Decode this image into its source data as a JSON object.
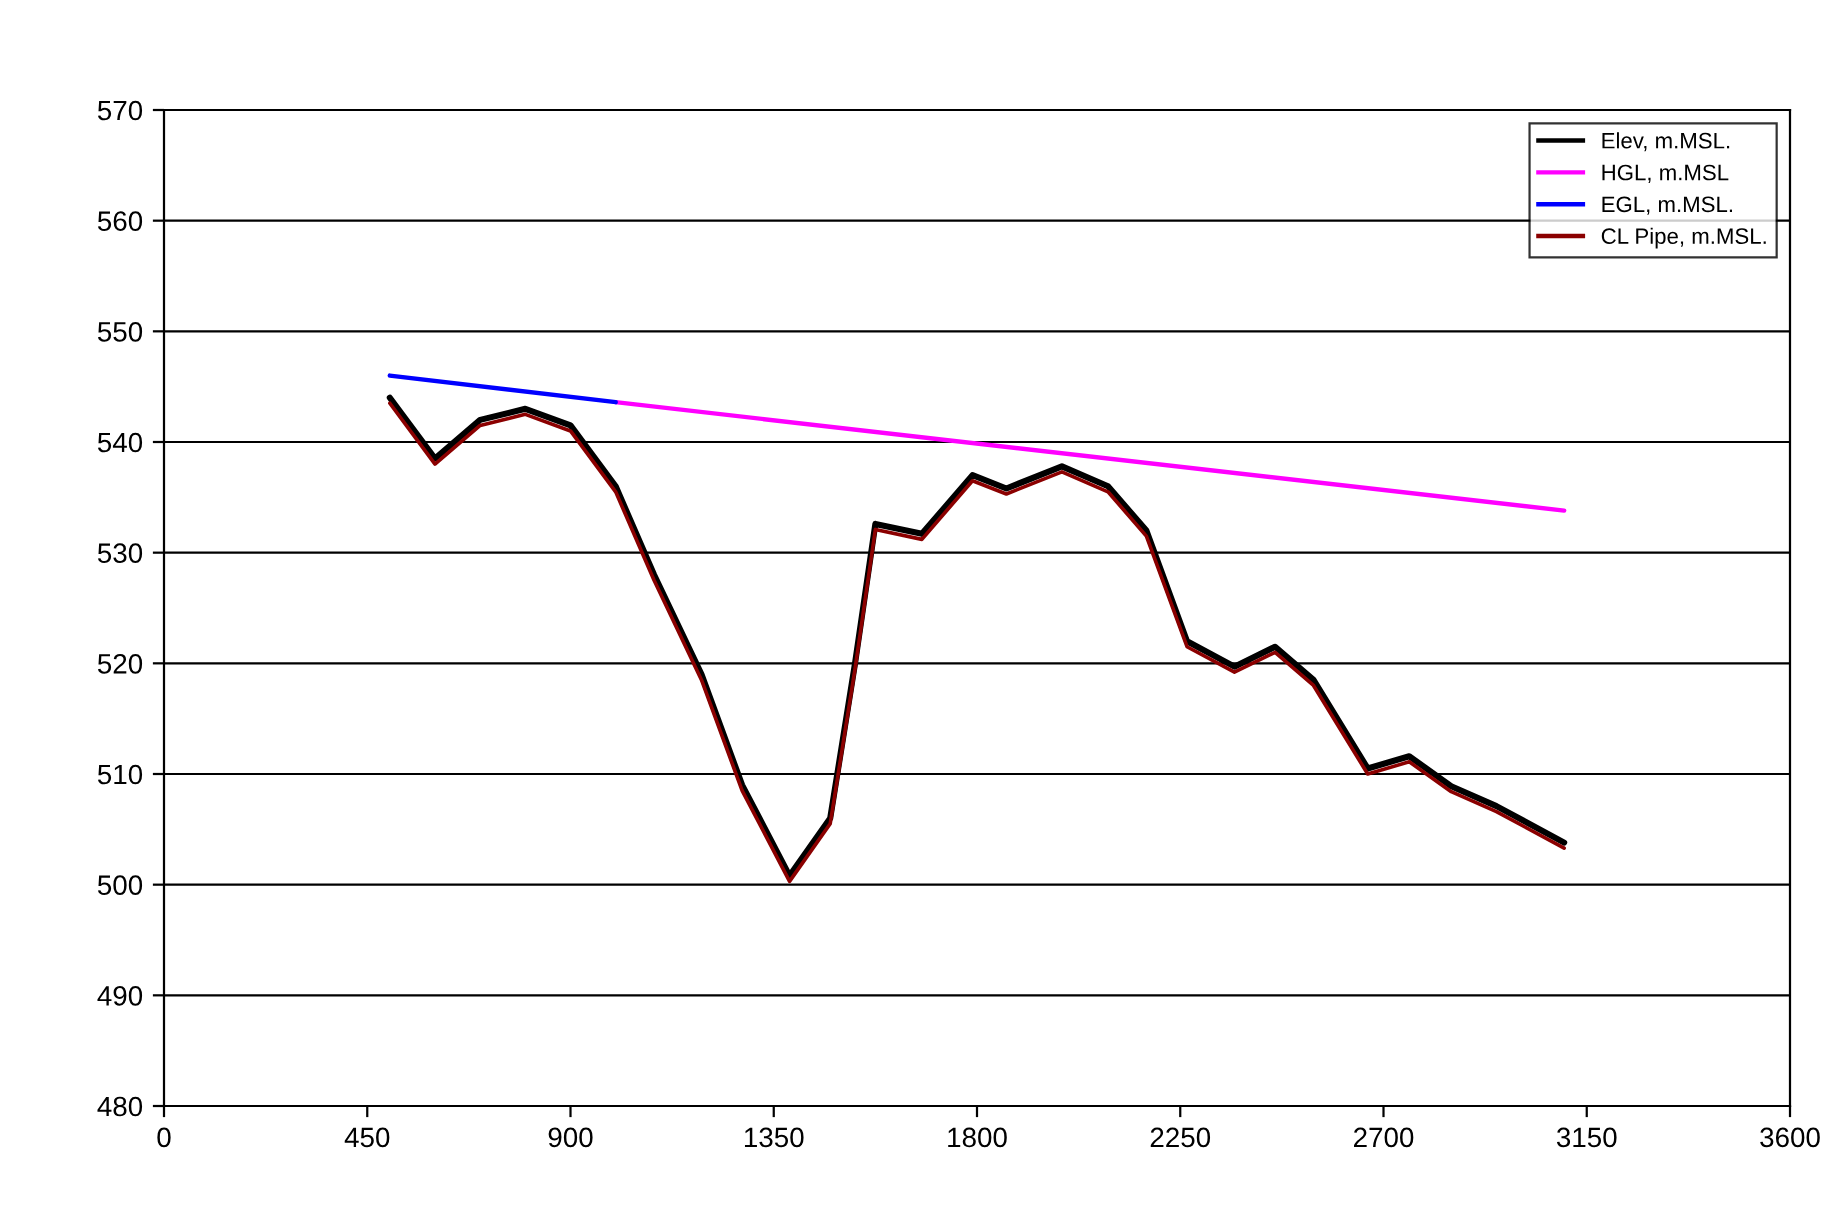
{
  "chart_data": {
    "type": "line",
    "xlim": [
      0,
      3600
    ],
    "xticks": [
      0,
      450,
      900,
      1350,
      1800,
      2250,
      2700,
      3150,
      3600
    ],
    "ylim": [
      480,
      570
    ],
    "yticks": [
      480,
      490,
      500,
      510,
      520,
      530,
      540,
      550,
      560,
      570
    ],
    "grid": "y",
    "legend": "top right",
    "marker": "none",
    "line_style": "solid",
    "series": [
      {
        "name": "Elev, m.MSL.",
        "color": "#000000",
        "x": [
          500,
          600,
          700,
          800,
          900,
          1000,
          1085,
          1190,
          1280,
          1385,
          1475,
          1530,
          1575,
          1678,
          1790,
          1865,
          1988,
          2090,
          2175,
          2265,
          2370,
          2460,
          2545,
          2665,
          2757,
          2850,
          2950,
          3100
        ],
        "values": [
          544,
          538.5,
          542,
          543,
          541.5,
          536,
          528,
          519,
          509,
          500.8,
          506,
          520,
          532.6,
          531.7,
          537,
          535.8,
          537.8,
          536,
          532,
          522,
          519.7,
          521.5,
          518.5,
          510.5,
          511.6,
          508.9,
          507.1,
          503.8
        ]
      },
      {
        "name": "HGL, m.MSL",
        "color": "#ff00ff",
        "x": [
          1000,
          3100
        ],
        "values": [
          543.6,
          533.8
        ]
      },
      {
        "name": "EGL, m.MSL.",
        "color": "#0000ff",
        "x": [
          500,
          1000
        ],
        "values": [
          546,
          543.6
        ]
      },
      {
        "name": "CL Pipe, m.MSL.",
        "color": "#8b0000",
        "x": [
          500,
          600,
          700,
          800,
          900,
          1000,
          1085,
          1190,
          1280,
          1385,
          1475,
          1530,
          1575,
          1678,
          1790,
          1865,
          1988,
          2090,
          2175,
          2265,
          2370,
          2460,
          2545,
          2665,
          2757,
          2850,
          2950,
          3100
        ],
        "values": [
          543.5,
          538,
          541.5,
          542.5,
          541,
          535.5,
          527.5,
          518.5,
          508.5,
          500.3,
          505.5,
          519.5,
          532.1,
          531.2,
          536.5,
          535.3,
          537.3,
          535.5,
          531.5,
          521.5,
          519.2,
          521,
          518,
          510,
          511.1,
          508.4,
          506.6,
          503.3
        ]
      }
    ]
  }
}
